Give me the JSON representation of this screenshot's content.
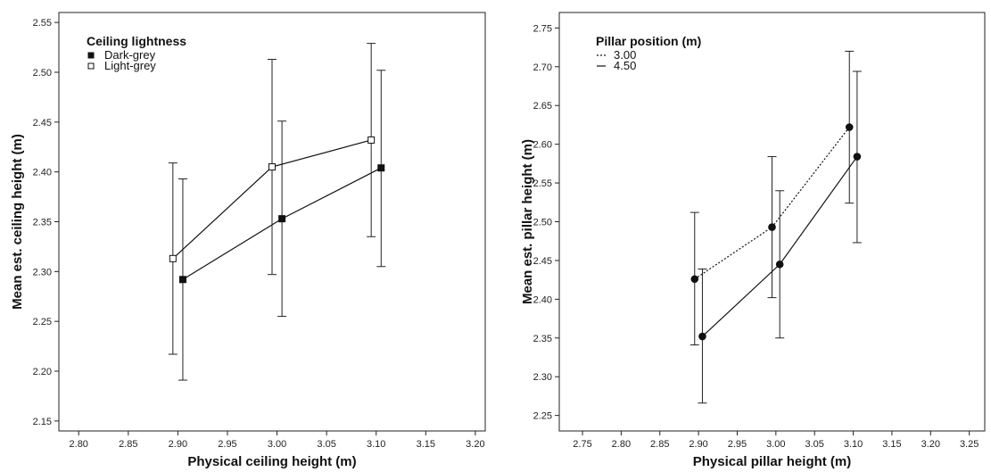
{
  "chart_data": [
    {
      "type": "line",
      "xlabel": "Physical ceiling height (m)",
      "ylabel": "Mean est. ceiling height (m)",
      "xlim": [
        2.78,
        3.21
      ],
      "ylim": [
        2.14,
        2.56
      ],
      "xticks": [
        "2.80",
        "2.85",
        "2.90",
        "2.95",
        "3.00",
        "3.05",
        "3.10",
        "3.15",
        "3.20"
      ],
      "yticks": [
        "2.15",
        "2.20",
        "2.25",
        "2.30",
        "2.35",
        "2.40",
        "2.45",
        "2.50",
        "2.55"
      ],
      "grid": false,
      "legend": {
        "title": "Ceiling lightness",
        "placement": "top-left"
      },
      "series": [
        {
          "name": "Dark-grey",
          "marker": "filled-square",
          "line_style": "solid",
          "points": [
            {
              "x": 2.905,
              "y": 2.292,
              "err_low": 2.191,
              "err_high": 2.393
            },
            {
              "x": 3.005,
              "y": 2.353,
              "err_low": 2.255,
              "err_high": 2.451
            },
            {
              "x": 3.105,
              "y": 2.404,
              "err_low": 2.305,
              "err_high": 2.502
            }
          ]
        },
        {
          "name": "Light-grey",
          "marker": "open-square",
          "line_style": "solid",
          "points": [
            {
              "x": 2.895,
              "y": 2.313,
              "err_low": 2.217,
              "err_high": 2.409
            },
            {
              "x": 2.995,
              "y": 2.405,
              "err_low": 2.297,
              "err_high": 2.513
            },
            {
              "x": 3.095,
              "y": 2.432,
              "err_low": 2.335,
              "err_high": 2.529
            }
          ]
        }
      ]
    },
    {
      "type": "line",
      "xlabel": "Physical pillar height (m)",
      "ylabel": "Mean est. pillar height (m)",
      "xlim": [
        2.72,
        3.27
      ],
      "ylim": [
        2.23,
        2.77
      ],
      "xticks": [
        "2.75",
        "2.80",
        "2.85",
        "2.90",
        "2.95",
        "3.00",
        "3.05",
        "3.10",
        "3.15",
        "3.20",
        "3.25"
      ],
      "yticks": [
        "2.25",
        "2.30",
        "2.35",
        "2.40",
        "2.45",
        "2.50",
        "2.55",
        "2.60",
        "2.65",
        "2.70",
        "2.75"
      ],
      "grid": false,
      "legend": {
        "title": "Pillar position (m)",
        "placement": "top-left"
      },
      "series": [
        {
          "name": "3.00",
          "marker": "filled-circle",
          "line_style": "dotted",
          "points": [
            {
              "x": 2.895,
              "y": 2.426,
              "err_low": 2.341,
              "err_high": 2.512
            },
            {
              "x": 2.995,
              "y": 2.493,
              "err_low": 2.402,
              "err_high": 2.584
            },
            {
              "x": 3.095,
              "y": 2.622,
              "err_low": 2.524,
              "err_high": 2.72
            }
          ]
        },
        {
          "name": "4.50",
          "marker": "filled-circle",
          "line_style": "solid",
          "points": [
            {
              "x": 2.905,
              "y": 2.352,
              "err_low": 2.266,
              "err_high": 2.439
            },
            {
              "x": 3.005,
              "y": 2.445,
              "err_low": 2.35,
              "err_high": 2.54
            },
            {
              "x": 3.105,
              "y": 2.584,
              "err_low": 2.473,
              "err_high": 2.694
            }
          ]
        }
      ]
    }
  ]
}
